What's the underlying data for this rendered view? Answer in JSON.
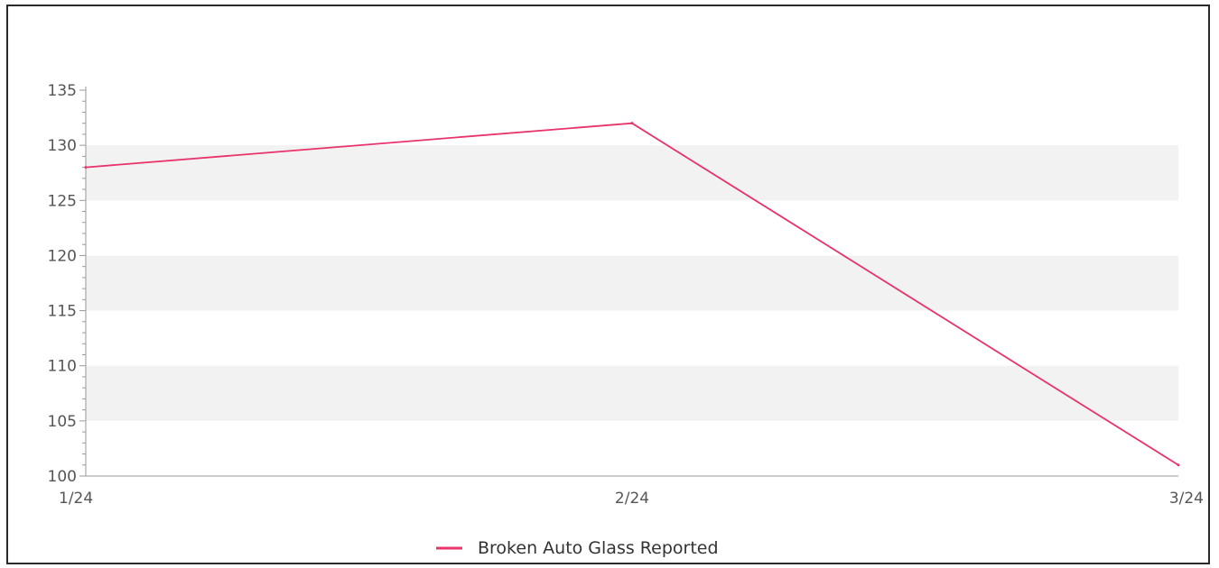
{
  "chart_data": {
    "type": "line",
    "categories": [
      "1/24",
      "2/24",
      "3/24"
    ],
    "series": [
      {
        "name": "Broken Auto Glass Reported",
        "values": [
          128,
          132,
          101
        ],
        "color": "#e8336b"
      }
    ],
    "ylim": [
      100,
      135
    ],
    "yticks": [
      100,
      105,
      110,
      115,
      120,
      125,
      130,
      135
    ],
    "xlabel": "",
    "ylabel": "",
    "grid": "alternating bands",
    "band_color": "#f2f2f2",
    "legend": "bottom-center"
  }
}
